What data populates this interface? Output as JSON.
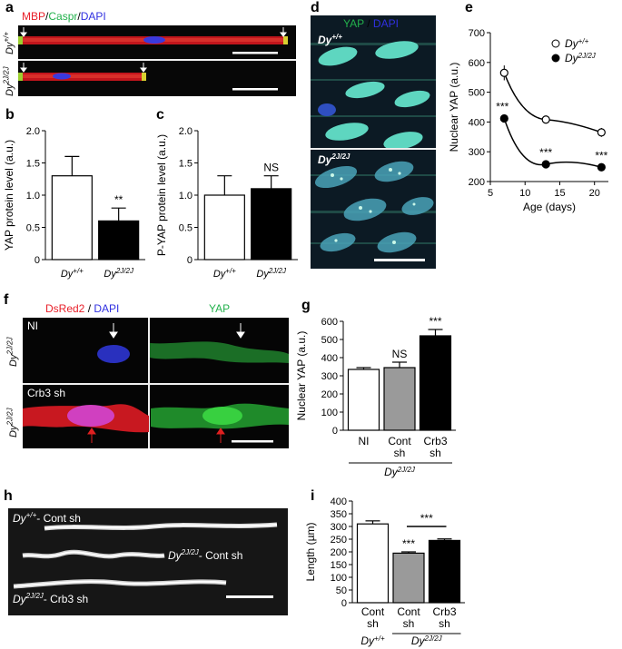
{
  "panels": {
    "a": {
      "letter": "a",
      "title_parts": [
        {
          "text": "MBP",
          "color": "#e8202a"
        },
        {
          "text": "/",
          "color": "#000000"
        },
        {
          "text": "Caspr",
          "color": "#22b14c"
        },
        {
          "text": "/",
          "color": "#000000"
        },
        {
          "text": "DAPI",
          "color": "#3030e0"
        }
      ],
      "row_labels": [
        "Dy+/+",
        "Dy2J/2J"
      ]
    },
    "b": {
      "letter": "b"
    },
    "c": {
      "letter": "c"
    },
    "d": {
      "letter": "d",
      "title_parts": [
        {
          "text": "YAP",
          "color": "#22b14c"
        },
        {
          "text": " / ",
          "color": "#000000"
        },
        {
          "text": "DAPI",
          "color": "#3030e0"
        }
      ],
      "row_labels": [
        "Dy+/+",
        "Dy2J/2J"
      ]
    },
    "e": {
      "letter": "e"
    },
    "f": {
      "letter": "f",
      "left_title_parts": [
        {
          "text": "DsRed2",
          "color": "#e8202a"
        },
        {
          "text": " / ",
          "color": "#000000"
        },
        {
          "text": "DAPI",
          "color": "#3030e0"
        }
      ],
      "right_title": "YAP",
      "right_title_color": "#22b14c",
      "row_labels": [
        "Dy2J/2J",
        "Dy2J/2J"
      ],
      "inset_labels": [
        "NI",
        "Crb3 sh"
      ]
    },
    "g": {
      "letter": "g"
    },
    "h": {
      "letter": "h",
      "fiber_labels": [
        "Dy+/+- Cont sh",
        "Dy2J/2J- Cont sh",
        "Dy2J/2J- Crb3 sh"
      ]
    },
    "i": {
      "letter": "i"
    }
  },
  "colors": {
    "red": "#e8202a",
    "green": "#22b14c",
    "blue": "#3030e0",
    "gray_bar": "#9a9a9a"
  },
  "chart_data": [
    {
      "id": "b",
      "type": "bar",
      "categories": [
        "Dy+/+",
        "Dy2J/2J"
      ],
      "values": [
        1.3,
        0.6
      ],
      "errors": [
        0.3,
        0.2
      ],
      "fills": [
        "#ffffff",
        "#000000"
      ],
      "ylabel": "YAP protein level (a.u.)",
      "ylim": [
        0,
        2.0
      ],
      "yticks": [
        "0",
        "0.5",
        "1.0",
        "1.5",
        "2.0"
      ],
      "annotations": [
        "",
        "**"
      ]
    },
    {
      "id": "c",
      "type": "bar",
      "categories": [
        "Dy+/+",
        "Dy2J/2J"
      ],
      "values": [
        1.0,
        1.1
      ],
      "errors": [
        0.3,
        0.2
      ],
      "fills": [
        "#ffffff",
        "#000000"
      ],
      "ylabel": "P-YAP protein level (a.u.)",
      "ylim": [
        0,
        2.0
      ],
      "yticks": [
        "0",
        "0.5",
        "1.0",
        "1.5",
        "2.0"
      ],
      "annotations": [
        "",
        "NS"
      ]
    },
    {
      "id": "e",
      "type": "line",
      "xlabel": "Age (days)",
      "ylabel": "Nuclear YAP (a.u.)",
      "xlim": [
        5,
        22
      ],
      "xticks": [
        "5",
        "10",
        "15",
        "20"
      ],
      "ylim": [
        200,
        700
      ],
      "yticks": [
        "200",
        "300",
        "400",
        "500",
        "600",
        "700"
      ],
      "series": [
        {
          "name": "Dy+/+",
          "x": [
            7,
            13,
            21
          ],
          "y": [
            565,
            408,
            365
          ],
          "errors": [
            25,
            12,
            15
          ],
          "marker": "open",
          "annotations": [
            "",
            "",
            ""
          ]
        },
        {
          "name": "Dy2J/2J",
          "x": [
            7,
            13,
            21
          ],
          "y": [
            412,
            258,
            248
          ],
          "errors": [
            10,
            8,
            8
          ],
          "marker": "filled",
          "annotations": [
            "***",
            "***",
            "***"
          ]
        }
      ]
    },
    {
      "id": "g",
      "type": "bar",
      "categories": [
        "NI",
        "Cont sh",
        "Crb3 sh"
      ],
      "values": [
        335,
        345,
        520
      ],
      "errors": [
        10,
        30,
        35
      ],
      "fills": [
        "#ffffff",
        "#9a9a9a",
        "#000000"
      ],
      "ylabel": "Nuclear YAP (a.u.)",
      "ylim": [
        0,
        600
      ],
      "yticks": [
        "0",
        "100",
        "200",
        "300",
        "400",
        "500",
        "600"
      ],
      "annotations": [
        "",
        "NS",
        "***"
      ],
      "group_label": "Dy2J/2J"
    },
    {
      "id": "i",
      "type": "bar",
      "categories": [
        "Cont sh",
        "Cont sh",
        "Crb3 sh"
      ],
      "values": [
        310,
        195,
        245
      ],
      "errors": [
        12,
        5,
        6
      ],
      "fills": [
        "#ffffff",
        "#9a9a9a",
        "#000000"
      ],
      "ylabel": "Length (µm)",
      "ylim": [
        0,
        400
      ],
      "yticks": [
        "0",
        "50",
        "100",
        "150",
        "200",
        "250",
        "300",
        "350",
        "400"
      ],
      "annotations": [
        "",
        "***",
        ""
      ],
      "bracket_label": "***",
      "group_labels": [
        "Dy+/+",
        "Dy2J/2J"
      ]
    }
  ]
}
